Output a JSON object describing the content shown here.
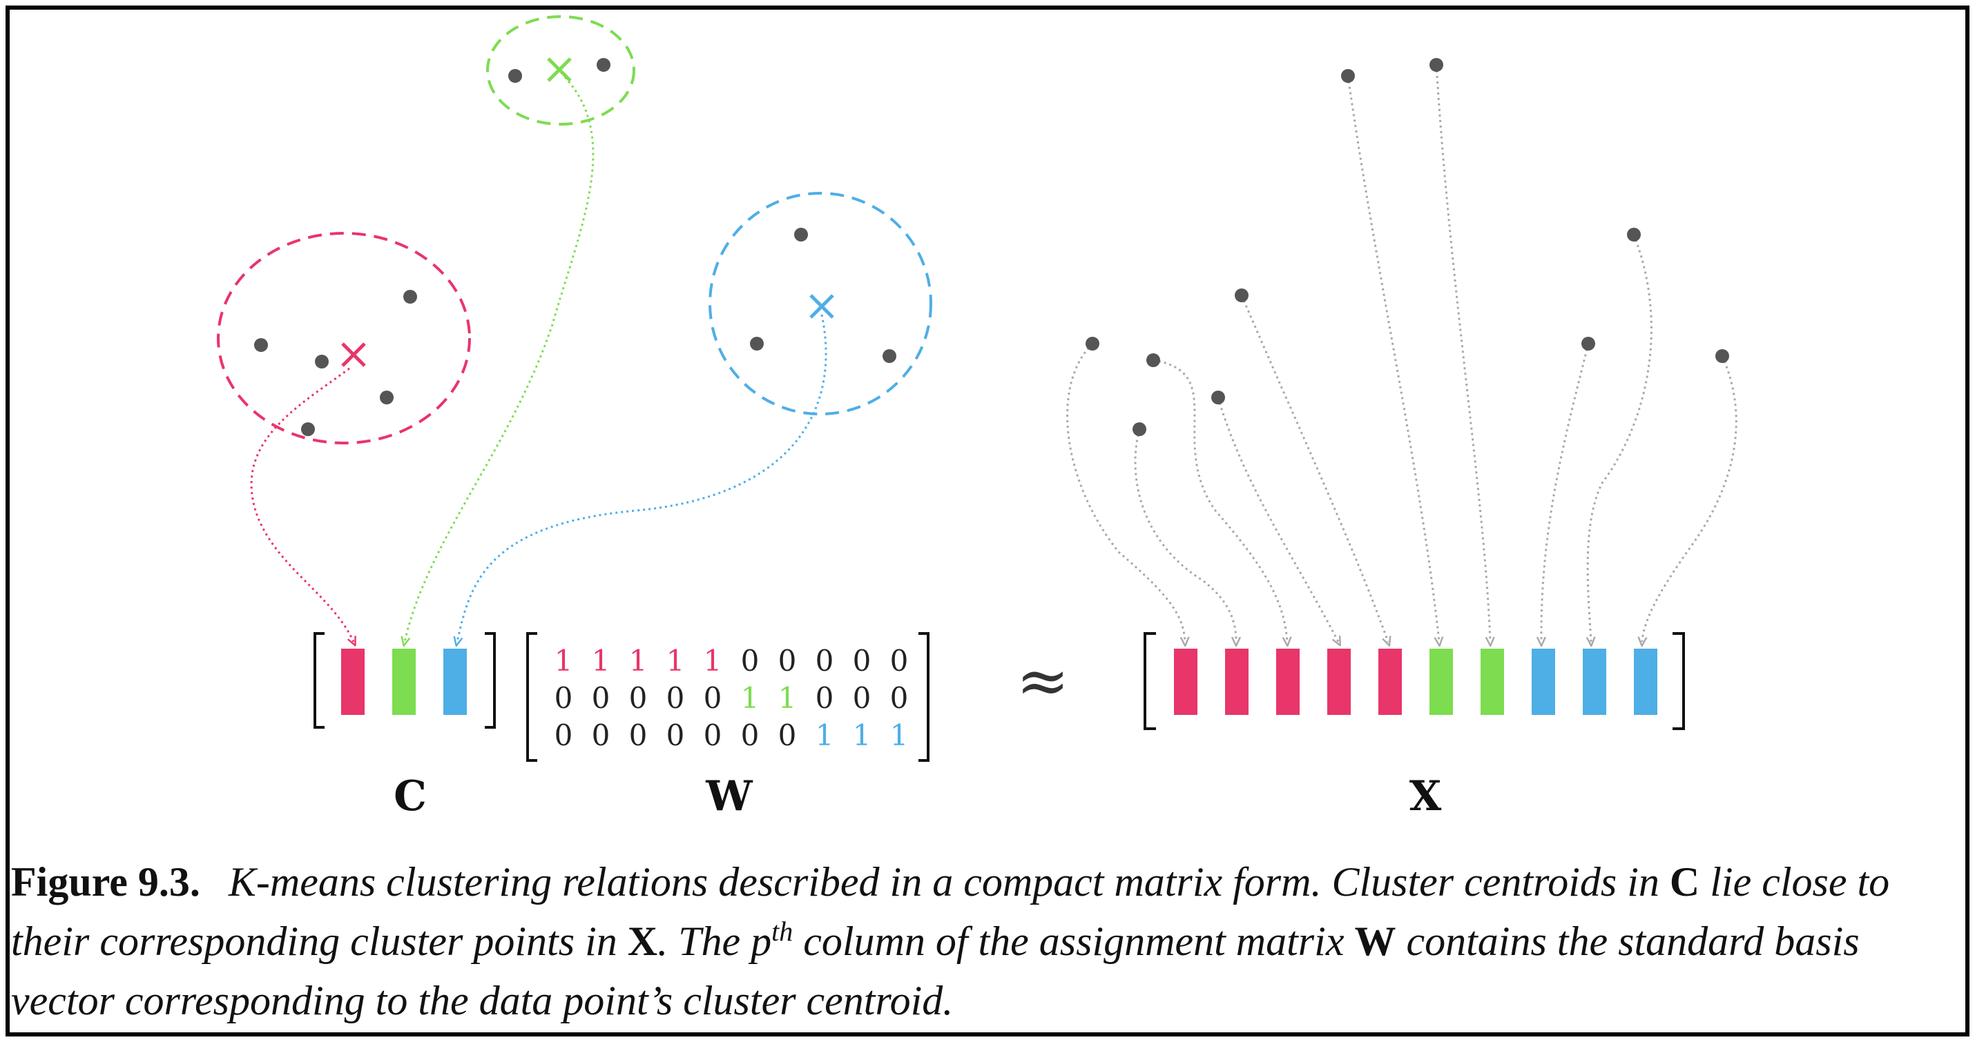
{
  "colors": {
    "cluster1": "#e8356a",
    "cluster2": "#7ddc4f",
    "cluster3": "#4eaee6",
    "point": "#555555",
    "connector": "#a8a8a8"
  },
  "clusters": [
    {
      "name": "red",
      "color": "#e8356a",
      "points": 5
    },
    {
      "name": "green",
      "color": "#7ddc4f",
      "points": 2
    },
    {
      "name": "blue",
      "color": "#4eaee6",
      "points": 3
    }
  ],
  "labels": {
    "c": "C",
    "w": "W",
    "x": "X",
    "approx": "≈"
  },
  "matrix_w": {
    "rows": [
      [
        1,
        1,
        1,
        1,
        1,
        0,
        0,
        0,
        0,
        0
      ],
      [
        0,
        0,
        0,
        0,
        0,
        1,
        1,
        0,
        0,
        0
      ],
      [
        0,
        0,
        0,
        0,
        0,
        0,
        0,
        1,
        1,
        1
      ]
    ]
  },
  "x_columns": [
    "red",
    "red",
    "red",
    "red",
    "red",
    "green",
    "green",
    "blue",
    "blue",
    "blue"
  ],
  "caption": {
    "figure": "Figure 9.3.",
    "t1": "K-means clustering relations described in a compact matrix form. Cluster centroids in",
    "c": "C",
    "t2": "lie close to their corresponding cluster points in",
    "x": "X",
    "t3": ". The",
    "p": "p",
    "th": "th",
    "t4": "column of the assignment matrix",
    "w": "W",
    "t5": "contains the standard basis vector corresponding to the data point’s cluster centroid."
  }
}
